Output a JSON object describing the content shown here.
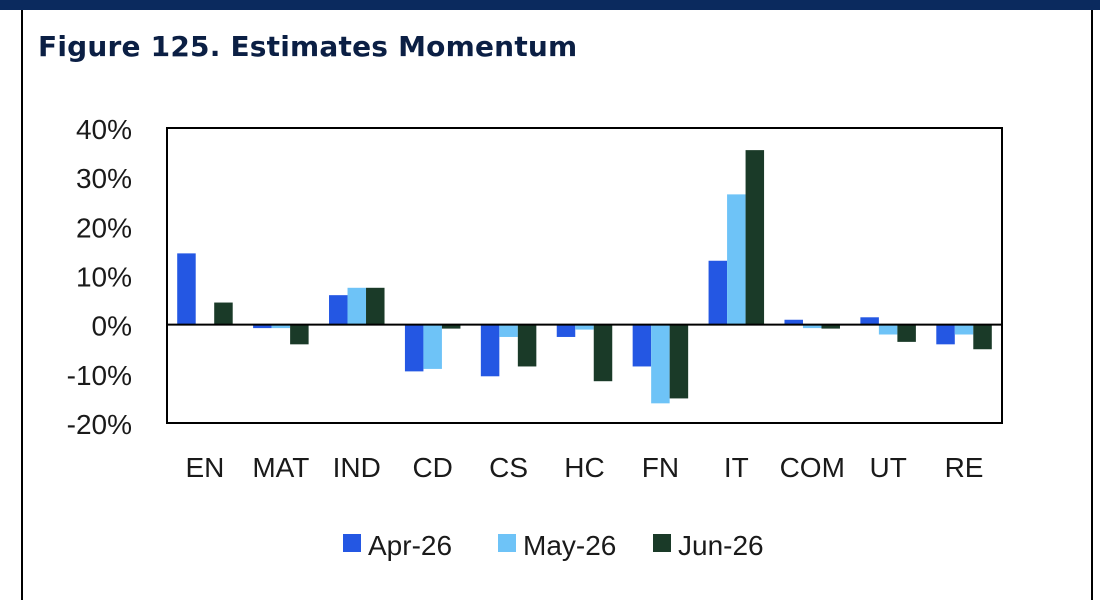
{
  "title": "Figure 125. Estimates Momentum",
  "chart_data": {
    "type": "bar",
    "title": "Figure 125. Estimates Momentum",
    "xlabel": "",
    "ylabel": "",
    "ylim": [
      -20,
      40
    ],
    "y_ticks": [
      40,
      30,
      20,
      10,
      0,
      -10,
      -20
    ],
    "y_tick_labels": [
      "40%",
      "30%",
      "20%",
      "10%",
      "0%",
      "-10%",
      "-20%"
    ],
    "grid": false,
    "legend_position": "bottom",
    "categories": [
      "EN",
      "MAT",
      "IND",
      "CD",
      "CS",
      "HC",
      "FN",
      "IT",
      "COM",
      "UT",
      "RE"
    ],
    "series": [
      {
        "name": "Apr-26",
        "color": "#2457e3",
        "values": [
          14.5,
          -0.7,
          6.0,
          -9.5,
          -10.5,
          -2.5,
          -8.5,
          13.0,
          1.0,
          1.5,
          -4.0
        ]
      },
      {
        "name": "May-26",
        "color": "#6ec3f7",
        "values": [
          0.0,
          -0.7,
          7.5,
          -9.0,
          -2.5,
          -1.0,
          -16.0,
          26.5,
          -0.7,
          -2.0,
          -2.0
        ]
      },
      {
        "name": "Jun-26",
        "color": "#1a3a28",
        "values": [
          4.5,
          -4.0,
          7.5,
          -0.8,
          -8.5,
          -11.5,
          -15.0,
          35.5,
          -0.8,
          -3.5,
          -5.0
        ]
      }
    ]
  }
}
